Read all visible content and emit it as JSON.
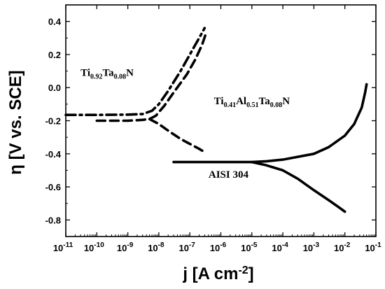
{
  "chart_data": {
    "type": "line",
    "xlabel": "j [A cm",
    "xlabel_sup": "-2",
    "xlabel_close": "]",
    "ylabel": "η [V vs. SCE]",
    "x_scale": "log",
    "xlim": [
      1e-11,
      0.1
    ],
    "ylim": [
      -0.9,
      0.5
    ],
    "x_ticks": [
      {
        "base": "10",
        "exp": "-11",
        "value": 1e-11
      },
      {
        "base": "10",
        "exp": "-10",
        "value": 1e-10
      },
      {
        "base": "10",
        "exp": "-9",
        "value": 1e-09
      },
      {
        "base": "10",
        "exp": "-8",
        "value": 1e-08
      },
      {
        "base": "10",
        "exp": "-7",
        "value": 1e-07
      },
      {
        "base": "10",
        "exp": "-6",
        "value": 1e-06
      },
      {
        "base": "10",
        "exp": "-5",
        "value": 1e-05
      },
      {
        "base": "10",
        "exp": "-4",
        "value": 0.0001
      },
      {
        "base": "10",
        "exp": "-3",
        "value": 0.001
      },
      {
        "base": "10",
        "exp": "-2",
        "value": 0.01
      },
      {
        "base": "10",
        "exp": "-1",
        "value": 0.1
      }
    ],
    "y_ticks": [
      {
        "label": "0.4",
        "value": 0.4
      },
      {
        "label": "0.2",
        "value": 0.2
      },
      {
        "label": "0.0",
        "value": 0.0
      },
      {
        "label": "-0.2",
        "value": -0.2
      },
      {
        "label": "-0.4",
        "value": -0.4
      },
      {
        "label": "-0.6",
        "value": -0.6
      },
      {
        "label": "-0.8",
        "value": -0.8
      }
    ],
    "grid": false,
    "legend": "none",
    "series": [
      {
        "style": "dash-dot",
        "branches": [
          [
            [
              1e-11,
              -0.165
            ],
            [
              1e-10,
              -0.165
            ],
            [
              1e-09,
              -0.163
            ],
            [
              3e-09,
              -0.16
            ],
            [
              6e-09,
              -0.14
            ],
            [
              1e-08,
              -0.1
            ],
            [
              2e-08,
              -0.02
            ],
            [
              5e-08,
              0.1
            ],
            [
              1e-07,
              0.2
            ],
            [
              2e-07,
              0.3
            ],
            [
              3e-07,
              0.36
            ]
          ]
        ]
      },
      {
        "style": "dashed",
        "branches": [
          [
            [
              1e-10,
              -0.2
            ],
            [
              1e-09,
              -0.2
            ],
            [
              3e-09,
              -0.195
            ],
            [
              5e-09,
              -0.19
            ],
            [
              8e-09,
              -0.17
            ],
            [
              1.5e-08,
              -0.11
            ],
            [
              3e-08,
              -0.03
            ],
            [
              8e-08,
              0.08
            ],
            [
              1.5e-07,
              0.17
            ],
            [
              2.5e-07,
              0.26
            ],
            [
              3.2e-07,
              0.32
            ]
          ],
          [
            [
              5e-09,
              -0.19
            ],
            [
              1e-08,
              -0.22
            ],
            [
              2e-08,
              -0.26
            ],
            [
              5e-08,
              -0.31
            ],
            [
              1e-07,
              -0.34
            ],
            [
              2e-07,
              -0.37
            ],
            [
              3e-07,
              -0.39
            ]
          ]
        ]
      },
      {
        "style": "solid",
        "branches": [
          [
            [
              3e-08,
              -0.45
            ],
            [
              1e-06,
              -0.45
            ],
            [
              1e-05,
              -0.45
            ],
            [
              3e-05,
              -0.445
            ],
            [
              0.0001,
              -0.435
            ],
            [
              0.001,
              -0.4
            ],
            [
              0.003,
              -0.36
            ],
            [
              0.01,
              -0.29
            ],
            [
              0.02,
              -0.22
            ],
            [
              0.035,
              -0.12
            ],
            [
              0.045,
              -0.03
            ],
            [
              0.05,
              0.02
            ]
          ],
          [
            [
              1e-05,
              -0.45
            ],
            [
              3e-05,
              -0.47
            ],
            [
              0.0001,
              -0.5
            ],
            [
              0.0003,
              -0.55
            ],
            [
              0.001,
              -0.62
            ],
            [
              0.003,
              -0.68
            ],
            [
              0.006,
              -0.72
            ],
            [
              0.01,
              -0.75
            ]
          ]
        ]
      }
    ],
    "annotations": [
      {
        "parts": [
          {
            "t": "Ti"
          },
          {
            "t": "0.92",
            "sub": true
          },
          {
            "t": "Ta"
          },
          {
            "t": "0.08",
            "sub": true
          },
          {
            "t": "N"
          }
        ],
        "x": 3e-11,
        "y": 0.07
      },
      {
        "parts": [
          {
            "t": "Ti"
          },
          {
            "t": "0.41",
            "sub": true
          },
          {
            "t": "Al"
          },
          {
            "t": "0.51",
            "sub": true
          },
          {
            "t": "Ta"
          },
          {
            "t": "0.08",
            "sub": true
          },
          {
            "t": "N"
          }
        ],
        "x": 6e-07,
        "y": -0.1
      },
      {
        "parts": [
          {
            "t": "AISI 304"
          }
        ],
        "x": 4e-07,
        "y": -0.545
      }
    ]
  }
}
